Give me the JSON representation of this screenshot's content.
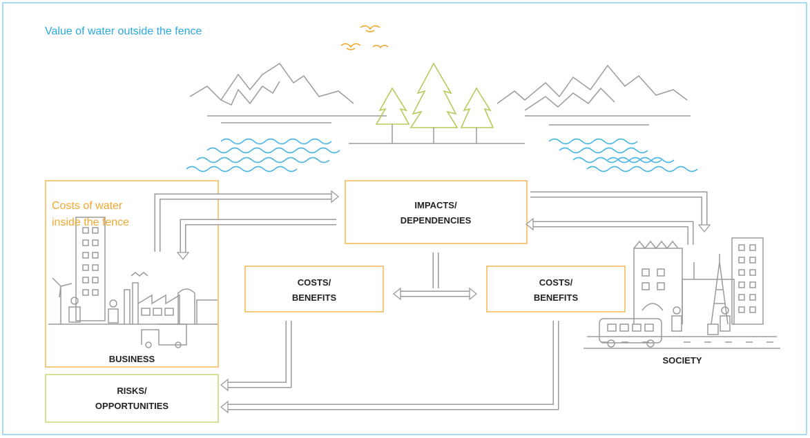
{
  "title": "Value of water outside the fence",
  "inner_title": [
    "Costs of water",
    "inside the fence"
  ],
  "nodes": [
    {
      "lines": [
        "IMPACTS/",
        "DEPENDENCIES"
      ]
    },
    {
      "lines": [
        "COSTS/",
        "BENEFITS"
      ]
    },
    {
      "lines": [
        "COSTS/",
        "BENEFITS"
      ]
    },
    {
      "lines": [
        "RISKS/",
        "OPPORTUNITIES"
      ]
    }
  ],
  "labels": [
    "BUSINESS",
    "SOCIETY"
  ]
}
